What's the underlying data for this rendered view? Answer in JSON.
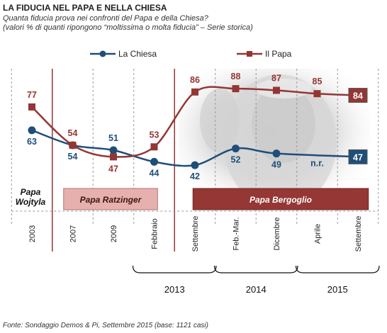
{
  "header": {
    "title": "LA FIDUCIA NEL PAPA E NELLA CHIESA",
    "subtitle_1": "Quanta fiducia prova nei confronti del Papa e della Chiesa?",
    "subtitle_2": "(valori % di quanti ripongono “moltissima o molta fiducia” – Serie storica)"
  },
  "footer": {
    "source": "Fonte: Sondaggio Demos & Pi, Settembre 2015 (base: 1121 casi)"
  },
  "colors": {
    "chiesa": "#1f4e79",
    "papa": "#943634",
    "ratzinger_band": "#e6b0ae",
    "bergoglio_band": "#953735"
  },
  "chart_data": {
    "type": "line",
    "categories": [
      "2003",
      "2007",
      "2009",
      "Febbraio",
      "Settembre",
      "Feb.-Mar.",
      "Dicembre",
      "Aprile",
      "Settembre"
    ],
    "year_groups": [
      {
        "label": "2013",
        "from": 3,
        "to": 4
      },
      {
        "label": "2014",
        "from": 5,
        "to": 6
      },
      {
        "label": "2015",
        "from": 7,
        "to": 8
      }
    ],
    "legend": {
      "position": "top",
      "labels": [
        "La Chiesa",
        "Il Papa"
      ]
    },
    "series": [
      {
        "name": "La Chiesa",
        "values": [
          63,
          54,
          51,
          44,
          42,
          52,
          49,
          null,
          47
        ],
        "labels": [
          "63",
          "54",
          "51",
          "44",
          "42",
          "52",
          "49",
          "n.r.",
          "47"
        ]
      },
      {
        "name": "Il Papa",
        "values": [
          77,
          54,
          47,
          53,
          86,
          88,
          87,
          85,
          84
        ],
        "labels": [
          "77",
          "54",
          "47",
          "53",
          "86",
          "88",
          "87",
          "85",
          "84"
        ]
      }
    ],
    "eras": [
      {
        "label": "Papa\nWojtyla",
        "from": 0,
        "to": 0
      },
      {
        "label": "Papa Ratzinger",
        "from": 1,
        "to": 3
      },
      {
        "label": "Papa  Bergoglio",
        "from": 4,
        "to": 8
      }
    ],
    "ylim": [
      25,
      100
    ],
    "grid": "vertical-dashed"
  }
}
